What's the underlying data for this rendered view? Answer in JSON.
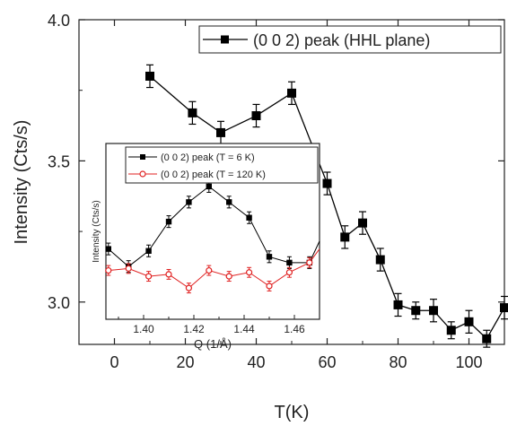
{
  "chart_data": [
    {
      "type": "line",
      "xlabel": "T(K)",
      "ylabel": "Intensity (Cts/s)",
      "xlim": [
        -10,
        110
      ],
      "ylim": [
        2.85,
        4.0
      ],
      "x_ticks": [
        0,
        20,
        40,
        60,
        80,
        100
      ],
      "y_ticks": [
        3.0,
        3.5,
        4.0
      ],
      "x_tick_labels": [
        "0",
        "20",
        "40",
        "60",
        "80",
        "100"
      ],
      "y_tick_labels": [
        "3.0",
        "3.5",
        "4.0"
      ],
      "legend_position": "top-right",
      "series": [
        {
          "name": "(0 0 2) peak (HHL plane)",
          "color": "#000000",
          "marker": "filled-square",
          "x": [
            10,
            22,
            30,
            40,
            50,
            60,
            65,
            70,
            75,
            80,
            85,
            90,
            95,
            100,
            105,
            110
          ],
          "y": [
            3.8,
            3.67,
            3.6,
            3.66,
            3.74,
            3.42,
            3.23,
            3.28,
            3.15,
            2.99,
            2.97,
            2.97,
            2.9,
            2.93,
            2.87,
            2.98
          ],
          "err": [
            0.04,
            0.04,
            0.04,
            0.04,
            0.04,
            0.04,
            0.04,
            0.04,
            0.04,
            0.04,
            0.03,
            0.04,
            0.03,
            0.04,
            0.03,
            0.04
          ]
        }
      ]
    },
    {
      "type": "line",
      "xlabel": "Q (1/Å)",
      "ylabel": "Intensity (Cts/s)",
      "xlim": [
        1.385,
        1.47
      ],
      "ylim": [
        2.7,
        3.6
      ],
      "x_ticks": [
        1.4,
        1.42,
        1.44,
        1.46
      ],
      "x_tick_labels": [
        "1.40",
        "1.42",
        "1.44",
        "1.46"
      ],
      "legend_position": "top",
      "series": [
        {
          "name": "(0 0 2) peak (T = 6 K)",
          "color": "#000000",
          "marker": "filled-square",
          "x": [
            1.386,
            1.394,
            1.402,
            1.41,
            1.418,
            1.426,
            1.434,
            1.442,
            1.45,
            1.458,
            1.466,
            1.472
          ],
          "y": [
            3.06,
            2.97,
            3.05,
            3.2,
            3.3,
            3.38,
            3.3,
            3.22,
            3.02,
            2.99,
            2.99,
            3.1
          ],
          "err": [
            0.03,
            0.03,
            0.03,
            0.03,
            0.03,
            0.03,
            0.03,
            0.03,
            0.03,
            0.03,
            0.03,
            0.03
          ]
        },
        {
          "name": "(0 0 2) peak (T = 120 K)",
          "color": "#e02020",
          "marker": "open-circle",
          "x": [
            1.386,
            1.394,
            1.402,
            1.41,
            1.418,
            1.426,
            1.434,
            1.442,
            1.45,
            1.458,
            1.466,
            1.472
          ],
          "y": [
            2.95,
            2.96,
            2.92,
            2.93,
            2.86,
            2.95,
            2.92,
            2.94,
            2.87,
            2.94,
            2.99,
            3.06
          ],
          "err": [
            0.025,
            0.025,
            0.025,
            0.025,
            0.025,
            0.025,
            0.025,
            0.025,
            0.025,
            0.025,
            0.025,
            0.025
          ]
        }
      ]
    }
  ]
}
